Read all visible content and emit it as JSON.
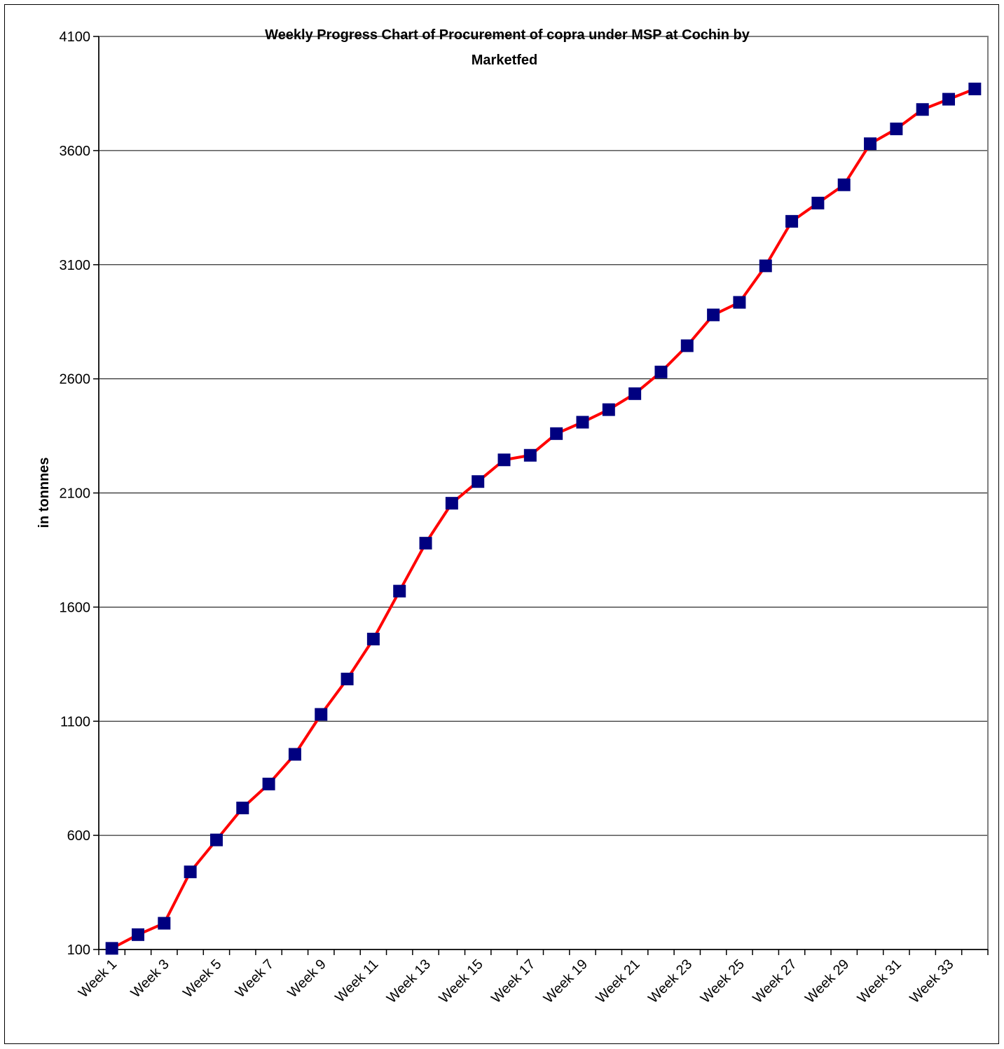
{
  "chart_data": {
    "type": "line",
    "title": "Weekly Progress Chart of Procurement of copra under MSP at Cochin by Marketfed",
    "title_lines": [
      "Weekly Progress Chart of Procurement of copra under MSP at Cochin by",
      "Marketfed"
    ],
    "ylabel": "in tonnnes",
    "xlabel": "",
    "ylim": [
      100,
      4100
    ],
    "yticks": [
      100,
      600,
      1100,
      1600,
      2100,
      2600,
      3100,
      3600,
      4100
    ],
    "grid": true,
    "legend": "none",
    "categories": [
      "Week 1",
      "Week 2",
      "Week 3",
      "Week 4",
      "Week 5",
      "Week 6",
      "Week 7",
      "Week 8",
      "Week 9",
      "Week 10",
      "Week 11",
      "Week 12",
      "Week 13",
      "Week 14",
      "Week 15",
      "Week 16",
      "Week 17",
      "Week 18",
      "Week 19",
      "Week 20",
      "Week 21",
      "Week 22",
      "Week 23",
      "Week 24",
      "Week 25",
      "Week 26",
      "Week 27",
      "Week 28",
      "Week 29",
      "Week 30",
      "Week 31",
      "Week 32",
      "Week 33",
      "Week 34"
    ],
    "xtick_labels": [
      "Week 1",
      "Week 3",
      "Week 5",
      "Week 7",
      "Week 9",
      "Week 11",
      "Week 13",
      "Week 15",
      "Week 17",
      "Week 19",
      "Week 21",
      "Week 23",
      "Week 25",
      "Week 27",
      "Week 29",
      "Week 31",
      "Week 33"
    ],
    "series": [
      {
        "values": [
          105,
          165,
          215,
          440,
          580,
          720,
          825,
          955,
          1130,
          1285,
          1460,
          1670,
          1880,
          2055,
          2150,
          2245,
          2265,
          2360,
          2410,
          2465,
          2535,
          2630,
          2745,
          2880,
          2935,
          3095,
          3290,
          3370,
          3450,
          3630,
          3695,
          3780,
          3825,
          3870
        ],
        "line_color": "#ff0000",
        "marker_color": "#000080",
        "marker": "square"
      }
    ]
  }
}
